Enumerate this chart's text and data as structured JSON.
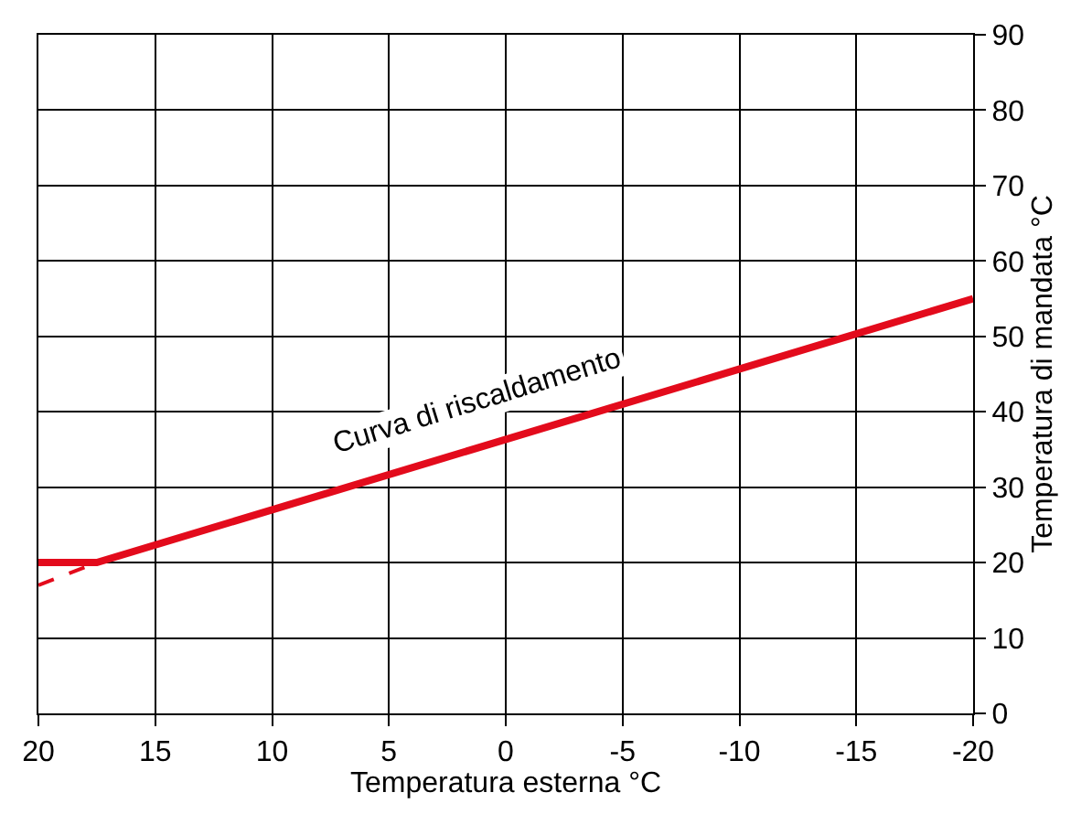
{
  "chart_data": {
    "type": "line",
    "xlabel": "Temperatura esterna °C",
    "ylabel": "Temperatura di mandata °C",
    "xlim": [
      20,
      -20
    ],
    "xticks": [
      20,
      15,
      10,
      5,
      0,
      -5,
      -10,
      -15,
      -20
    ],
    "ylim": [
      0,
      90
    ],
    "yticks": [
      0,
      10,
      20,
      30,
      40,
      50,
      60,
      70,
      80,
      90
    ],
    "grid": true,
    "legend": false,
    "marker": "none",
    "series": [
      {
        "color": "#e30b1c",
        "x": [
          20,
          17.5,
          -20
        ],
        "values": [
          20,
          20,
          55
        ],
        "line_style": "solid"
      },
      {
        "color": "#e30b1c",
        "x": [
          20,
          17.5
        ],
        "values": [
          17,
          20
        ],
        "line_style": "dashed"
      }
    ],
    "annotations": [
      "Curva di riscaldamento"
    ]
  }
}
